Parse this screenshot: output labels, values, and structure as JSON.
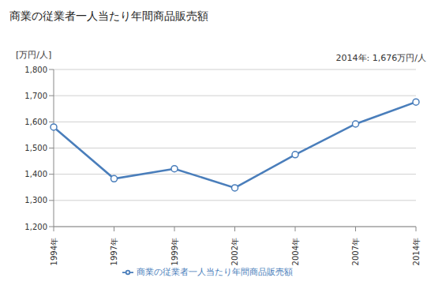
{
  "chart_data": {
    "type": "line",
    "title": "商業の従業者一人当たり年間商品販売額",
    "y_label": "[万円/人]",
    "annotation": "2014年: 1,676万円/人",
    "categories": [
      "1994年",
      "1997年",
      "1999年",
      "2002年",
      "2004年",
      "2007年",
      "2014年"
    ],
    "series": [
      {
        "name": "商業の従業者一人当たり年間商品販売額",
        "color": "#4a7ebb",
        "marker": "circle",
        "line_style": "solid",
        "values": [
          1580,
          1383,
          1421,
          1348,
          1475,
          1592,
          1676
        ]
      }
    ],
    "ylim": [
      1200,
      1800
    ],
    "yticks": [
      {
        "value": 1200,
        "label": "1,200"
      },
      {
        "value": 1300,
        "label": "1,300"
      },
      {
        "value": 1400,
        "label": "1,400"
      },
      {
        "value": 1500,
        "label": "1,500"
      },
      {
        "value": 1600,
        "label": "1,600"
      },
      {
        "value": 1700,
        "label": "1,700"
      },
      {
        "value": 1800,
        "label": "1,800"
      }
    ],
    "grid": true,
    "legend": "bottom"
  }
}
